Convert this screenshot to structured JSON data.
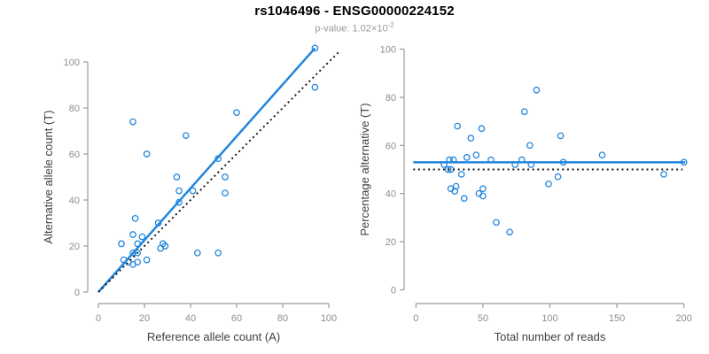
{
  "title": "rs1046496 - ENSG00000224152",
  "subtitle": {
    "prefix": "p-value: 1.02×10",
    "exponent": "-2"
  },
  "colors": {
    "accent": "#2286DD",
    "line_dark": "#1a1a1a",
    "axis": "#9b9b9b",
    "tick_label": "#8e8e8e",
    "axis_title": "#404040",
    "title": "#000000",
    "subtitle": "#9a9a9a",
    "background": "#ffffff"
  },
  "chart_data": [
    {
      "id": "allele-counts",
      "type": "scatter",
      "xlabel": "Reference allele count (A)",
      "ylabel": "Alternative allele count (T)",
      "xticks": [
        0,
        20,
        40,
        60,
        80,
        100
      ],
      "yticks": [
        0,
        20,
        40,
        60,
        80,
        100
      ],
      "xlim": [
        0,
        105
      ],
      "ylim": [
        0,
        108
      ],
      "grid": false,
      "legend": null,
      "points": [
        [
          10,
          21
        ],
        [
          11,
          14
        ],
        [
          13,
          13
        ],
        [
          15,
          12
        ],
        [
          17,
          13
        ],
        [
          15,
          17
        ],
        [
          17,
          17
        ],
        [
          21,
          14
        ],
        [
          15,
          25
        ],
        [
          17,
          21
        ],
        [
          16,
          32
        ],
        [
          19,
          24
        ],
        [
          21,
          60
        ],
        [
          15,
          74
        ],
        [
          26,
          30
        ],
        [
          27,
          19
        ],
        [
          28,
          21
        ],
        [
          29,
          20
        ],
        [
          34,
          50
        ],
        [
          35,
          39
        ],
        [
          35,
          44
        ],
        [
          38,
          68
        ],
        [
          41,
          44
        ],
        [
          43,
          17
        ],
        [
          52,
          17
        ],
        [
          52,
          58
        ],
        [
          55,
          43
        ],
        [
          55,
          50
        ],
        [
          60,
          78
        ],
        [
          94,
          89
        ],
        [
          94,
          106
        ]
      ],
      "lines": [
        {
          "name": "regression-line",
          "style": "solid",
          "color_key": "accent",
          "x1": 0,
          "y1": 0,
          "x2": 94,
          "y2": 106
        },
        {
          "name": "identity-line",
          "style": "dotted",
          "color_key": "line_dark",
          "x1": 0,
          "y1": 0,
          "x2": 105,
          "y2": 105
        }
      ]
    },
    {
      "id": "percentage-vs-reads",
      "type": "scatter",
      "xlabel": "Total number of reads",
      "ylabel": "Percentage alternative (T)",
      "xticks": [
        0,
        50,
        100,
        150,
        200
      ],
      "yticks": [
        0,
        20,
        40,
        60,
        80,
        100
      ],
      "xlim": [
        0,
        205
      ],
      "ylim": [
        0,
        100
      ],
      "grid": false,
      "legend": null,
      "points": [
        [
          21,
          52
        ],
        [
          24,
          50
        ],
        [
          26,
          50
        ],
        [
          25,
          54
        ],
        [
          28,
          54
        ],
        [
          26,
          42
        ],
        [
          29,
          41
        ],
        [
          30,
          43
        ],
        [
          31,
          68
        ],
        [
          34,
          48
        ],
        [
          36,
          38
        ],
        [
          38,
          55
        ],
        [
          41,
          63
        ],
        [
          45,
          56
        ],
        [
          47,
          40
        ],
        [
          49,
          67
        ],
        [
          50,
          42
        ],
        [
          50,
          39
        ],
        [
          56,
          54
        ],
        [
          60,
          28
        ],
        [
          70,
          24
        ],
        [
          74,
          52
        ],
        [
          79,
          54
        ],
        [
          81,
          74
        ],
        [
          85,
          60
        ],
        [
          86,
          52
        ],
        [
          90,
          83
        ],
        [
          99,
          44
        ],
        [
          106,
          47
        ],
        [
          108,
          64
        ],
        [
          110,
          53
        ],
        [
          139,
          56
        ],
        [
          185,
          48
        ],
        [
          200,
          53
        ]
      ],
      "lines": [
        {
          "name": "mean-percentage-line",
          "style": "solid",
          "color_key": "accent",
          "x1": -2,
          "y1": 53,
          "x2": 201,
          "y2": 53
        },
        {
          "name": "fifty-percent-line",
          "style": "dotted",
          "color_key": "line_dark",
          "x1": -2,
          "y1": 50,
          "x2": 199,
          "y2": 50
        }
      ]
    }
  ]
}
